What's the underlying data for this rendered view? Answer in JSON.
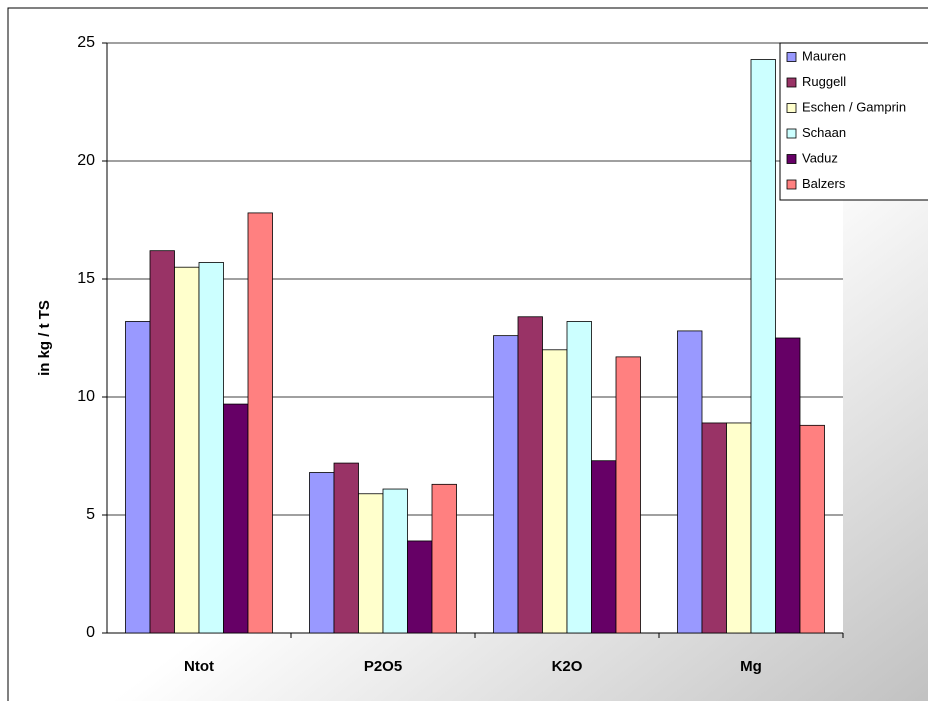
{
  "chart_data": {
    "type": "bar",
    "y_label": "in kg / t TS",
    "categories": [
      "Ntot",
      "P2O5",
      "K2O",
      "Mg"
    ],
    "series": [
      {
        "name": "Mauren",
        "color": "#9999ff",
        "values": [
          13.2,
          6.8,
          12.6,
          12.8
        ]
      },
      {
        "name": "Ruggell",
        "color": "#993366",
        "values": [
          16.2,
          7.2,
          13.4,
          8.9
        ]
      },
      {
        "name": "Eschen / Gamprin",
        "color": "#ffffcc",
        "values": [
          15.5,
          5.9,
          12.0,
          8.9
        ]
      },
      {
        "name": "Schaan",
        "color": "#ccffff",
        "values": [
          15.7,
          6.1,
          13.2,
          24.3
        ]
      },
      {
        "name": "Vaduz",
        "color": "#660066",
        "values": [
          9.7,
          3.9,
          7.3,
          12.5
        ]
      },
      {
        "name": "Balzers",
        "color": "#ff8080",
        "values": [
          17.8,
          6.3,
          11.7,
          8.8
        ]
      }
    ],
    "ylim": [
      0,
      25
    ],
    "yticks": [
      0,
      5,
      10,
      15,
      20,
      25
    ],
    "grid": true,
    "legend": "top-right"
  }
}
